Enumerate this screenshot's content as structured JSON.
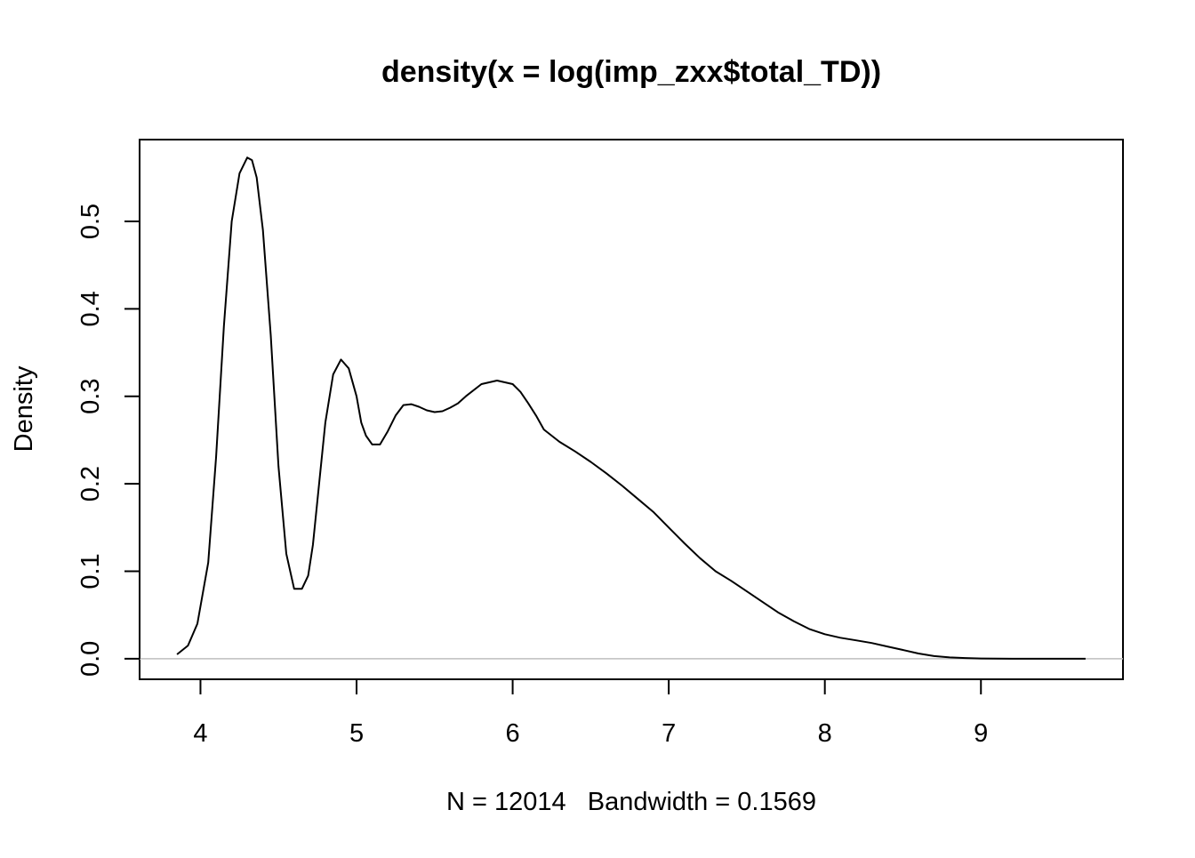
{
  "chart_data": {
    "type": "line",
    "title": "density(x = log(imp_zxx$total_TD))",
    "xlabel": "N = 12014   Bandwidth = 0.1569",
    "ylabel": "Density",
    "xlim": [
      3.61,
      9.91
    ],
    "ylim": [
      -0.0235,
      0.5935
    ],
    "x_ticks": [
      "4",
      "5",
      "6",
      "7",
      "8",
      "9"
    ],
    "y_ticks": [
      "0.0",
      "0.1",
      "0.2",
      "0.3",
      "0.4",
      "0.5"
    ],
    "grid": false,
    "baseline": 0,
    "line_color": "#000000",
    "baseline_color": "#bebebe",
    "series": [
      {
        "x": [
          3.85,
          3.92,
          3.98,
          4.05,
          4.1,
          4.15,
          4.2,
          4.25,
          4.3,
          4.33,
          4.36,
          4.4,
          4.45,
          4.5,
          4.55,
          4.6,
          4.65,
          4.69,
          4.72,
          4.76,
          4.8,
          4.85,
          4.9,
          4.95,
          5.0,
          5.03,
          5.06,
          5.1,
          5.15,
          5.2,
          5.25,
          5.3,
          5.35,
          5.4,
          5.45,
          5.5,
          5.55,
          5.6,
          5.65,
          5.7,
          5.8,
          5.9,
          6.0,
          6.05,
          6.1,
          6.15,
          6.2,
          6.3,
          6.4,
          6.5,
          6.6,
          6.7,
          6.8,
          6.9,
          7.0,
          7.1,
          7.2,
          7.3,
          7.4,
          7.5,
          7.6,
          7.7,
          7.8,
          7.9,
          8.0,
          8.1,
          8.2,
          8.3,
          8.4,
          8.5,
          8.6,
          8.7,
          8.8,
          8.9,
          9.0,
          9.1,
          9.2,
          9.3,
          9.4,
          9.5,
          9.6,
          9.67
        ],
        "y": [
          0.005,
          0.015,
          0.04,
          0.11,
          0.23,
          0.38,
          0.5,
          0.555,
          0.573,
          0.57,
          0.55,
          0.49,
          0.37,
          0.22,
          0.12,
          0.08,
          0.08,
          0.095,
          0.13,
          0.2,
          0.27,
          0.325,
          0.342,
          0.332,
          0.3,
          0.27,
          0.255,
          0.245,
          0.245,
          0.26,
          0.278,
          0.29,
          0.291,
          0.288,
          0.284,
          0.282,
          0.283,
          0.287,
          0.292,
          0.3,
          0.314,
          0.318,
          0.314,
          0.305,
          0.292,
          0.278,
          0.262,
          0.248,
          0.237,
          0.225,
          0.212,
          0.198,
          0.183,
          0.168,
          0.15,
          0.132,
          0.115,
          0.1,
          0.089,
          0.077,
          0.065,
          0.053,
          0.043,
          0.034,
          0.028,
          0.024,
          0.021,
          0.018,
          0.014,
          0.01,
          0.006,
          0.003,
          0.0015,
          0.0008,
          0.0003,
          0.0001,
          0.0,
          0.0,
          0.0,
          0.0,
          0.0,
          0.0
        ]
      }
    ]
  }
}
